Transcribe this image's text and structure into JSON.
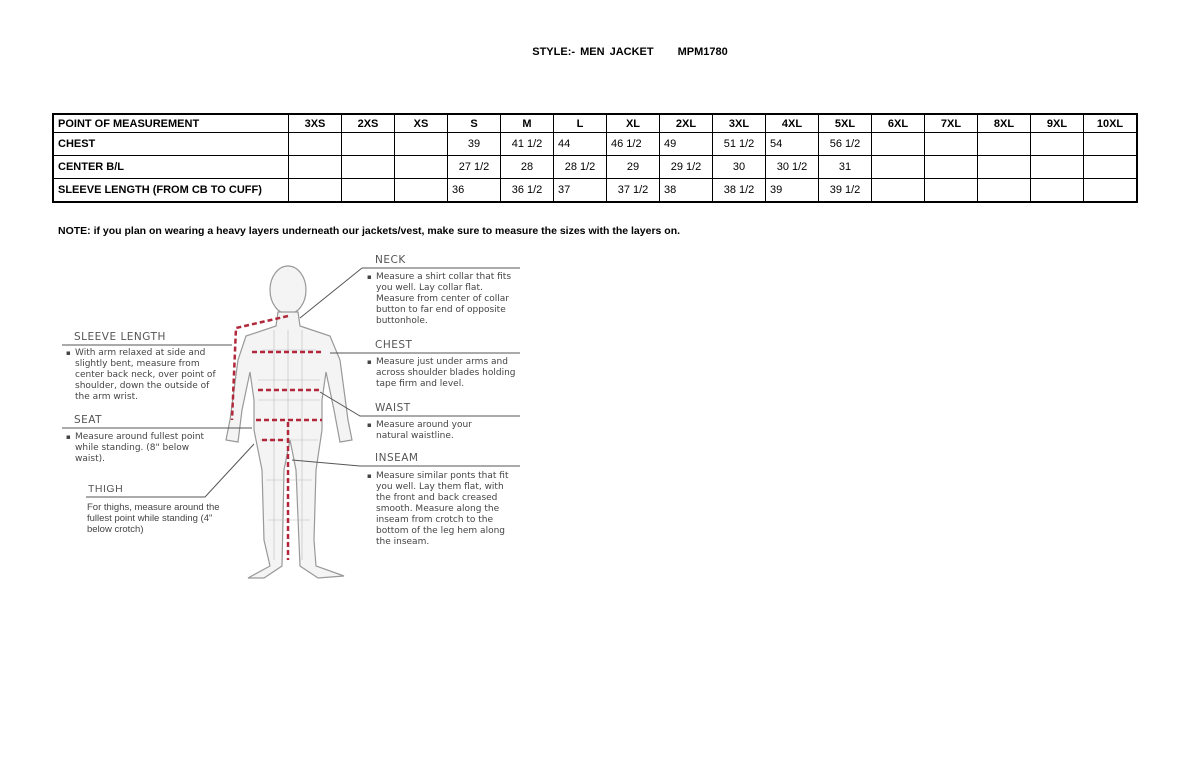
{
  "title": {
    "style": "STYLE:- MEN JACKET",
    "code": "MPM1780"
  },
  "table": {
    "headers": [
      "POINT OF MEASUREMENT",
      "3XS",
      "2XS",
      "XS",
      "S",
      "M",
      "L",
      "XL",
      "2XL",
      "3XL",
      "4XL",
      "5XL",
      "6XL",
      "7XL",
      "8XL",
      "9XL",
      "10XL"
    ],
    "rows": [
      [
        "CHEST",
        "",
        "",
        "",
        "39",
        "41 1/2",
        "44",
        "46 1/2",
        "49",
        "51 1/2",
        "54",
        "56 1/2",
        "",
        "",
        "",
        "",
        ""
      ],
      [
        "CENTER B/L",
        "",
        "",
        "",
        "27 1/2",
        "28",
        "28 1/2",
        "29",
        "29 1/2",
        "30",
        "30 1/2",
        "31",
        "",
        "",
        "",
        "",
        ""
      ],
      [
        "SLEEVE LENGTH (FROM CB TO CUFF)",
        "",
        "",
        "",
        "36",
        "36 1/2",
        "37",
        "37 1/2",
        "38",
        "38 1/2",
        "39",
        "39 1/2",
        "",
        "",
        "",
        "",
        ""
      ]
    ]
  },
  "note": "NOTE: if you plan on wearing a heavy layers underneath our jackets/vest, make sure to measure the sizes with the layers on.",
  "guide": {
    "neck": {
      "label": "NECK",
      "text": "Measure a shirt collar that fits you well. Lay collar flat. Measure from center of collar button to far end of opposite buttonhole."
    },
    "chest": {
      "label": "CHEST",
      "text": "Measure just under arms and across shoulder blades holding tape firm and level."
    },
    "waist": {
      "label": "WAIST",
      "text": "Measure around your natural waistline."
    },
    "inseam": {
      "label": "INSEAM",
      "text": "Measure similar ponts that fit you well. Lay them flat, with the front and back creased smooth. Measure along the inseam from crotch to the bottom of the leg hem along the inseam."
    },
    "sleeve": {
      "label": "SLEEVE LENGTH",
      "text": "With arm relaxed at side and slightly bent, measure from center back neck, over point of shoulder, down the outside of the arm wrist."
    },
    "seat": {
      "label": "SEAT",
      "text": "Measure around fullest point while standing. (8\" below waist)."
    },
    "thigh": {
      "label": "THIGH",
      "text": "For thighs, measure around the fullest point while standing (4\" below crotch)"
    }
  },
  "colors": {
    "measure_line": "#b0283a",
    "figure": "#999999"
  }
}
